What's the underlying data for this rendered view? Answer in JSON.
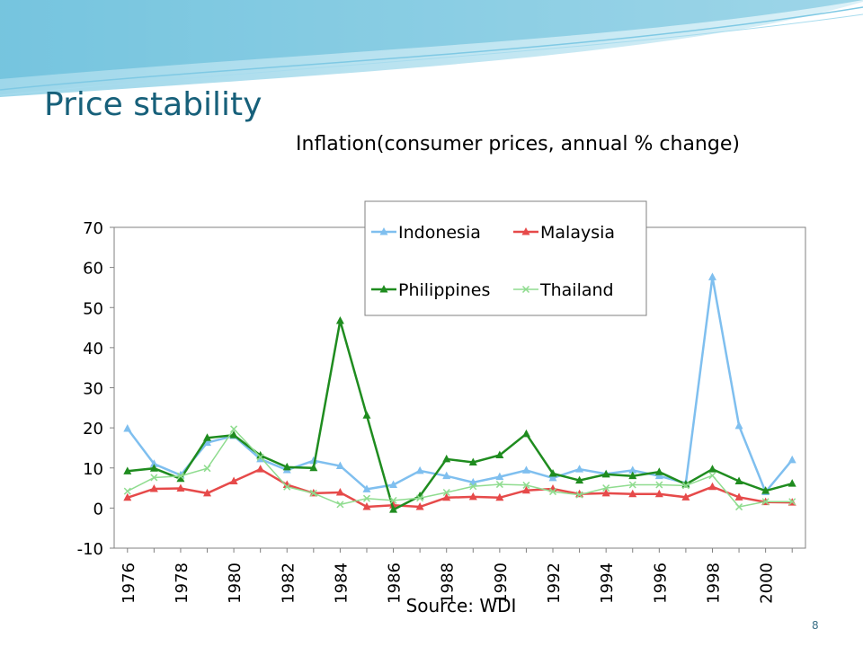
{
  "slide": {
    "title": "Price stability",
    "number": "8"
  },
  "chart_data": {
    "type": "line",
    "title": "Inflation(consumer prices, annual % change)",
    "source": "Source: WDI",
    "xlabel": "",
    "ylabel": "",
    "ylim": [
      -10,
      70
    ],
    "yticks": [
      -10,
      0,
      10,
      20,
      30,
      40,
      50,
      60,
      70
    ],
    "x": [
      1976,
      1977,
      1978,
      1979,
      1980,
      1981,
      1982,
      1983,
      1984,
      1985,
      1986,
      1987,
      1988,
      1989,
      1990,
      1991,
      1992,
      1993,
      1994,
      1995,
      1996,
      1997,
      1998,
      1999,
      2000,
      2001
    ],
    "xticklabels": [
      "1976",
      "1978",
      "1980",
      "1982",
      "1984",
      "1986",
      "1988",
      "1990",
      "1992",
      "1994",
      "1996",
      "1998",
      "2000"
    ],
    "grid": false,
    "legend_position": "top-center",
    "series": [
      {
        "name": "Indonesia",
        "color": "#7fbfef",
        "marker": "triangle",
        "values": [
          19.8,
          11.0,
          8.2,
          16.3,
          18.0,
          12.2,
          9.5,
          11.8,
          10.5,
          4.7,
          5.8,
          9.3,
          8.0,
          6.4,
          7.8,
          9.4,
          7.5,
          9.7,
          8.5,
          9.4,
          8.0,
          6.2,
          57.6,
          20.5,
          4.0,
          12.0
        ]
      },
      {
        "name": "Malaysia",
        "color": "#e64a4a",
        "marker": "triangle",
        "values": [
          2.6,
          4.8,
          4.9,
          3.7,
          6.7,
          9.7,
          5.8,
          3.7,
          3.9,
          0.3,
          0.7,
          0.3,
          2.6,
          2.8,
          2.6,
          4.4,
          4.8,
          3.5,
          3.7,
          3.5,
          3.5,
          2.7,
          5.3,
          2.7,
          1.5,
          1.4
        ]
      },
      {
        "name": "Philippines",
        "color": "#1f8c1f",
        "marker": "triangle",
        "values": [
          9.2,
          9.9,
          7.3,
          17.5,
          18.2,
          13.1,
          10.2,
          10.0,
          46.7,
          23.1,
          -0.4,
          3.0,
          12.2,
          11.4,
          13.2,
          18.5,
          8.6,
          6.9,
          8.4,
          8.0,
          9.0,
          5.9,
          9.7,
          6.7,
          4.3,
          6.1
        ]
      },
      {
        "name": "Thailand",
        "color": "#8fdc8f",
        "marker": "x",
        "values": [
          4.2,
          7.6,
          8.0,
          9.9,
          19.7,
          12.7,
          5.3,
          3.7,
          0.9,
          2.4,
          1.9,
          2.5,
          3.9,
          5.4,
          5.9,
          5.7,
          4.1,
          3.3,
          5.0,
          5.8,
          5.8,
          5.6,
          8.1,
          0.3,
          1.6,
          1.6
        ]
      }
    ]
  }
}
